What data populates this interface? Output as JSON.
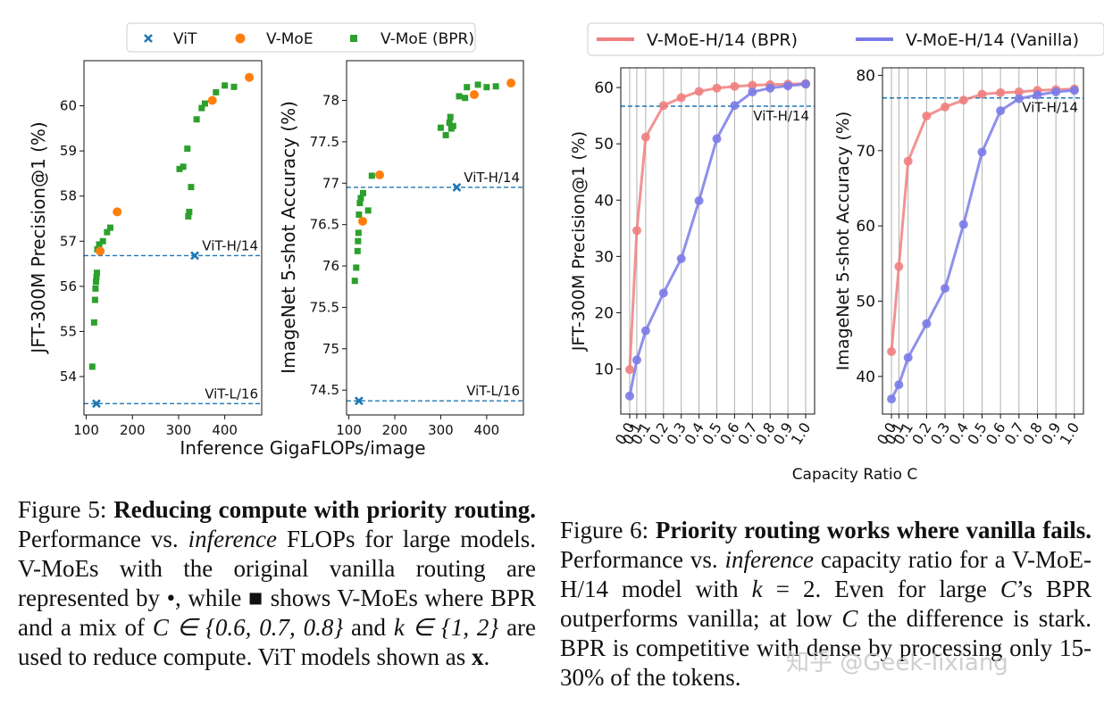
{
  "legend_left": {
    "vit": "ViT",
    "vmoe": "V-MoE",
    "vmoe_bpr": "V-MoE (BPR)"
  },
  "legend_right": {
    "bpr": "V-MoE-H/14 (BPR)",
    "vanilla": "V-MoE-H/14 (Vanilla)"
  },
  "shared_xlabel_left": "Inference GigaFLOPs/image",
  "shared_xlabel_right": "Capacity Ratio C",
  "colors": {
    "vit": "#1f77b4",
    "vmoe": "#ff7f0e",
    "bpr_green": "#2ca02c",
    "bpr_line": "#f08080",
    "vanilla_line": "#7b7be8",
    "ref_line": "#1f77b4"
  },
  "chart_data": [
    {
      "type": "scatter",
      "id": "jft_flops",
      "ylabel": "JFT-300M Precision@1 (%)",
      "xlim": [
        95,
        480
      ],
      "ylim": [
        53.15,
        61.0
      ],
      "xticks": [
        100,
        200,
        300,
        400
      ],
      "yticks": [
        54,
        55,
        56,
        57,
        58,
        59,
        60
      ],
      "ref_lines": [
        {
          "label": "ViT-H/14",
          "y": 56.68
        },
        {
          "label": "ViT-L/16",
          "y": 53.4
        }
      ],
      "vit": [
        [
          122,
          53.4
        ],
        [
          335,
          56.68
        ]
      ],
      "vmoe": [
        [
          130,
          56.78
        ],
        [
          167,
          57.65
        ],
        [
          373,
          60.12
        ],
        [
          453,
          60.63
        ]
      ],
      "vmoe_bpr": [
        [
          113,
          54.22
        ],
        [
          117,
          55.2
        ],
        [
          119,
          55.7
        ],
        [
          120,
          55.95
        ],
        [
          121,
          56.1
        ],
        [
          122,
          56.2
        ],
        [
          123,
          56.3
        ],
        [
          124,
          56.82
        ],
        [
          128,
          56.93
        ],
        [
          136,
          57.0
        ],
        [
          145,
          57.2
        ],
        [
          152,
          57.3
        ],
        [
          302,
          58.6
        ],
        [
          310,
          58.65
        ],
        [
          319,
          59.05
        ],
        [
          321,
          57.55
        ],
        [
          323,
          57.65
        ],
        [
          327,
          58.2
        ],
        [
          339,
          59.7
        ],
        [
          350,
          59.95
        ],
        [
          357,
          60.05
        ],
        [
          381,
          60.3
        ],
        [
          400,
          60.45
        ],
        [
          420,
          60.42
        ]
      ]
    },
    {
      "type": "scatter",
      "id": "imagenet_flops",
      "ylabel": "ImageNet 5-shot Accuracy (%)",
      "xlim": [
        95,
        480
      ],
      "ylim": [
        74.2,
        78.48
      ],
      "xticks": [
        100,
        200,
        300,
        400
      ],
      "yticks": [
        74.5,
        75.0,
        75.5,
        76.0,
        76.5,
        77.0,
        77.5,
        78.0
      ],
      "ref_lines": [
        {
          "label": "ViT-H/14",
          "y": 76.95
        },
        {
          "label": "ViT-L/16",
          "y": 74.37
        }
      ],
      "vit": [
        [
          122,
          74.37
        ],
        [
          335,
          76.95
        ]
      ],
      "vmoe": [
        [
          130,
          76.54
        ],
        [
          167,
          77.1
        ],
        [
          373,
          78.07
        ],
        [
          453,
          78.21
        ]
      ],
      "vmoe_bpr": [
        [
          113,
          75.82
        ],
        [
          116,
          75.98
        ],
        [
          119,
          76.18
        ],
        [
          120,
          76.3
        ],
        [
          121,
          76.4
        ],
        [
          122,
          76.62
        ],
        [
          124,
          76.76
        ],
        [
          126,
          76.82
        ],
        [
          131,
          76.88
        ],
        [
          142,
          76.67
        ],
        [
          150,
          77.09
        ],
        [
          300,
          77.67
        ],
        [
          311,
          77.58
        ],
        [
          319,
          77.73
        ],
        [
          321,
          77.8
        ],
        [
          323,
          77.66
        ],
        [
          327,
          77.69
        ],
        [
          340,
          78.05
        ],
        [
          353,
          78.03
        ],
        [
          357,
          78.16
        ],
        [
          381,
          78.19
        ],
        [
          400,
          78.16
        ],
        [
          420,
          78.17
        ]
      ]
    },
    {
      "type": "line",
      "id": "jft_capacity",
      "ylabel": "JFT-300M Precision@1 (%)",
      "xlabel": "Capacity Ratio C",
      "ylim": [
        2.0,
        63.5
      ],
      "yticks": [
        10,
        20,
        30,
        40,
        50,
        60
      ],
      "ref_line": {
        "label": "ViT-H/14",
        "y": 56.68
      },
      "x": [
        "0.01",
        "0.05",
        "0.1",
        "0.2",
        "0.3",
        "0.4",
        "0.5",
        "0.6",
        "0.7",
        "0.8",
        "0.9",
        "1.0"
      ],
      "xtick_labels": [
        "0.0",
        "0.1",
        "0.1",
        "0.2",
        "0.3",
        "0.4",
        "0.5",
        "0.6",
        "0.7",
        "0.8",
        "0.9",
        "1.0"
      ],
      "x_pos": [
        0.1,
        0.5,
        1.0,
        2.0,
        3.0,
        4.0,
        5.0,
        6.0,
        7.0,
        8.0,
        9.0,
        10.0
      ],
      "series": [
        {
          "name": "V-MoE-H/14 (BPR)",
          "values": [
            9.9,
            34.6,
            51.2,
            56.8,
            58.2,
            59.3,
            59.9,
            60.2,
            60.4,
            60.5,
            60.6,
            60.7
          ]
        },
        {
          "name": "V-MoE-H/14 (Vanilla)",
          "values": [
            5.2,
            11.6,
            16.8,
            23.5,
            29.6,
            39.9,
            50.9,
            56.8,
            59.2,
            59.9,
            60.3,
            60.6
          ]
        }
      ]
    },
    {
      "type": "line",
      "id": "imagenet_capacity",
      "ylabel": "ImageNet 5-shot Accuracy (%)",
      "xlabel": "Capacity Ratio C",
      "ylim": [
        35.0,
        81.0
      ],
      "yticks": [
        40,
        50,
        60,
        70,
        80
      ],
      "ref_line": {
        "label": "ViT-H/14",
        "y": 77.0
      },
      "x": [
        "0.01",
        "0.05",
        "0.1",
        "0.2",
        "0.3",
        "0.4",
        "0.5",
        "0.6",
        "0.7",
        "0.8",
        "0.9",
        "1.0"
      ],
      "xtick_labels": [
        "0.0",
        "0.1",
        "0.1",
        "0.2",
        "0.3",
        "0.4",
        "0.5",
        "0.6",
        "0.7",
        "0.8",
        "0.9",
        "1.0"
      ],
      "x_pos": [
        0.1,
        0.5,
        1.0,
        2.0,
        3.0,
        4.0,
        5.0,
        6.0,
        7.0,
        8.0,
        9.0,
        10.0
      ],
      "series": [
        {
          "name": "V-MoE-H/14 (BPR)",
          "values": [
            43.3,
            54.6,
            68.6,
            74.6,
            75.8,
            76.7,
            77.5,
            77.7,
            77.8,
            78.0,
            78.1,
            78.2
          ]
        },
        {
          "name": "V-MoE-H/14 (Vanilla)",
          "values": [
            37.0,
            38.9,
            42.5,
            47.0,
            51.7,
            60.2,
            69.8,
            75.3,
            76.9,
            77.4,
            77.8,
            78.0
          ]
        }
      ]
    }
  ],
  "captions": {
    "fig5": {
      "label": "Figure 5:",
      "title": "Reducing compute with priority routing.",
      "t1": "Performance vs.",
      "italic1": "inference",
      "t2": "FLOPs for large models. V-MoEs with the original vanilla routing are represented by •, while ■ shows V-MoEs where BPR and a mix of",
      "math1": "C ∈ {0.6, 0.7, 0.8}",
      "t3": "and",
      "math2": "k ∈ {1, 2}",
      "t4": "are used to reduce compute. ViT models shown as",
      "bold_x": "x",
      "t5": "."
    },
    "fig6": {
      "label": "Figure 6:",
      "title": "Priority routing works where vanilla fails.",
      "t1": "Performance vs.",
      "italic1": "inference",
      "t2": "capacity ratio for a V-MoE-H/14 model with",
      "math1": "k",
      "t3": "= 2. Even for large",
      "math2": "C",
      "t4": "’s BPR outperforms vanilla; at low",
      "math3": "C",
      "t5": "the difference is stark. BPR is competitive with dense by processing only 15-30% of the tokens."
    }
  },
  "watermark": "知乎 @Geek-lixiang"
}
